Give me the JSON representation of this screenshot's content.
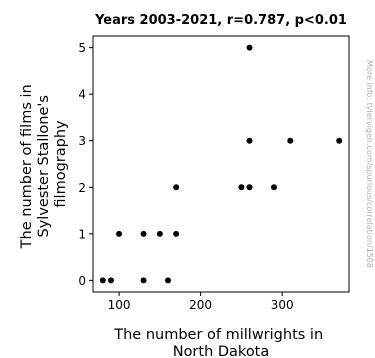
{
  "chart_data": {
    "type": "scatter",
    "title": "Years 2003-2021, r=0.787, p<0.01",
    "xlabel_lines": [
      "The number of millwrights in",
      "North Dakota"
    ],
    "ylabel_lines": [
      "The number of films in",
      "Sylvester Stallone's",
      "filmography"
    ],
    "xlim": [
      68,
      382
    ],
    "ylim": [
      -0.25,
      5.25
    ],
    "xticks": [
      100,
      200,
      300
    ],
    "yticks": [
      0,
      1,
      2,
      3,
      4,
      5
    ],
    "grid": false,
    "point_color": "#000000",
    "points": [
      {
        "x": 80,
        "y": 0
      },
      {
        "x": 90,
        "y": 0
      },
      {
        "x": 100,
        "y": 1
      },
      {
        "x": 130,
        "y": 1
      },
      {
        "x": 130,
        "y": 0
      },
      {
        "x": 150,
        "y": 1
      },
      {
        "x": 160,
        "y": 0
      },
      {
        "x": 170,
        "y": 2
      },
      {
        "x": 170,
        "y": 1
      },
      {
        "x": 250,
        "y": 2
      },
      {
        "x": 260,
        "y": 2
      },
      {
        "x": 260,
        "y": 5
      },
      {
        "x": 260,
        "y": 3
      },
      {
        "x": 290,
        "y": 2
      },
      {
        "x": 310,
        "y": 3
      },
      {
        "x": 370,
        "y": 3
      }
    ]
  },
  "watermark": "More info: tylervigen.com/spurious/correlation/1508"
}
